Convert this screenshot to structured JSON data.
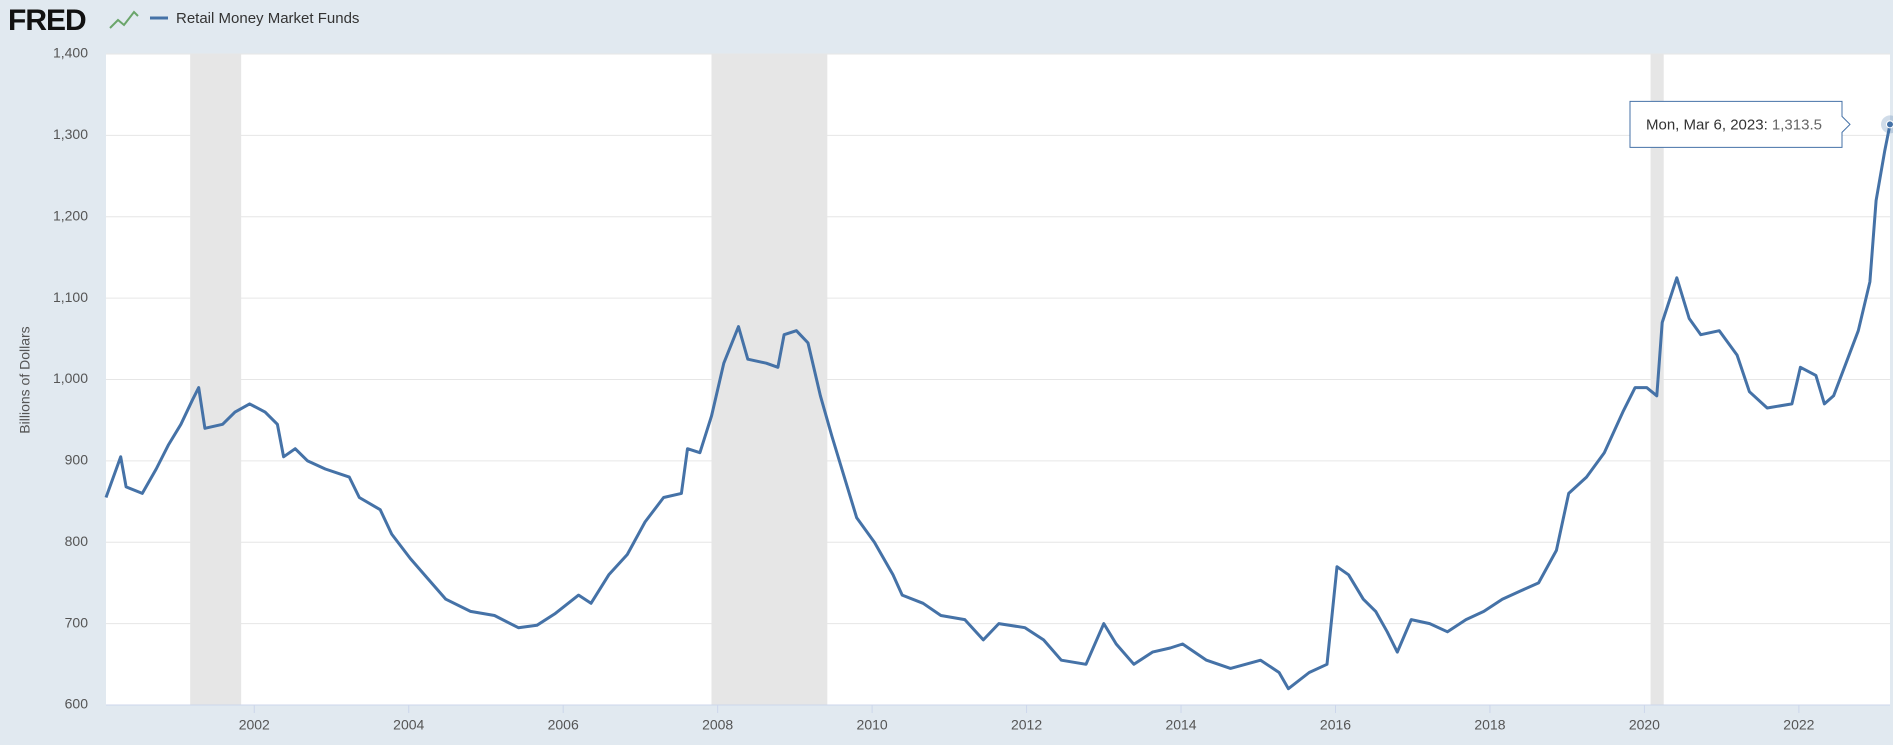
{
  "chart_data": {
    "type": "line",
    "logo": "FRED",
    "ylabel": "Billions of Dollars",
    "x": [
      2000.08,
      2000.27,
      2000.34,
      2000.55,
      2000.73,
      2000.89,
      2001.05,
      2001.2,
      2001.28,
      2001.36,
      2001.59,
      2001.75,
      2001.94,
      2002.14,
      2002.3,
      2002.38,
      2002.53,
      2002.69,
      2002.92,
      2003.23,
      2003.36,
      2003.63,
      2003.78,
      2004.02,
      2004.25,
      2004.48,
      2004.8,
      2005.11,
      2005.42,
      2005.66,
      2005.89,
      2006.2,
      2006.36,
      2006.59,
      2006.83,
      2007.06,
      2007.3,
      2007.53,
      2007.61,
      2007.77,
      2007.92,
      2008.08,
      2008.27,
      2008.39,
      2008.63,
      2008.78,
      2008.86,
      2009.02,
      2009.17,
      2009.33,
      2009.48,
      2009.64,
      2009.8,
      2010.03,
      2010.27,
      2010.39,
      2010.66,
      2010.89,
      2011.2,
      2011.44,
      2011.64,
      2011.98,
      2012.22,
      2012.45,
      2012.77,
      2013.0,
      2013.16,
      2013.39,
      2013.63,
      2013.86,
      2014.02,
      2014.33,
      2014.64,
      2015.03,
      2015.27,
      2015.39,
      2015.66,
      2015.89,
      2016.02,
      2016.17,
      2016.36,
      2016.52,
      2016.67,
      2016.8,
      2016.98,
      2017.22,
      2017.45,
      2017.69,
      2017.92,
      2018.16,
      2018.39,
      2018.63,
      2018.86,
      2019.02,
      2019.25,
      2019.48,
      2019.72,
      2019.88,
      2020.03,
      2020.16,
      2020.23,
      2020.42,
      2020.58,
      2020.73,
      2020.97,
      2021.2,
      2021.36,
      2021.59,
      2021.91,
      2022.02,
      2022.22,
      2022.33,
      2022.45,
      2022.61,
      2022.77,
      2022.92,
      2023.0,
      2023.11,
      2023.18
    ],
    "series": [
      {
        "name": "Retail Money Market Funds",
        "color": "#4572a7",
        "values": [
          855,
          905,
          868,
          860,
          890,
          920,
          945,
          975,
          990,
          940,
          945,
          960,
          970,
          960,
          945,
          905,
          915,
          900,
          890,
          880,
          855,
          840,
          810,
          780,
          755,
          730,
          715,
          710,
          695,
          698,
          712,
          735,
          725,
          760,
          785,
          825,
          855,
          860,
          915,
          910,
          955,
          1020,
          1065,
          1025,
          1020,
          1015,
          1055,
          1060,
          1045,
          980,
          930,
          880,
          830,
          800,
          760,
          735,
          725,
          710,
          705,
          680,
          700,
          695,
          680,
          655,
          650,
          700,
          675,
          650,
          665,
          670,
          675,
          655,
          645,
          655,
          640,
          620,
          640,
          650,
          770,
          760,
          730,
          715,
          690,
          665,
          705,
          700,
          690,
          705,
          715,
          730,
          740,
          750,
          790,
          860,
          880,
          910,
          960,
          990,
          990,
          980,
          1070,
          1125,
          1075,
          1055,
          1060,
          1030,
          985,
          965,
          970,
          1015,
          1005,
          970,
          980,
          1020,
          1060,
          1120,
          1220,
          1280,
          1313.5
        ]
      }
    ],
    "recessions": [
      [
        2001.17,
        2001.83
      ],
      [
        2007.92,
        2009.42
      ],
      [
        2020.08,
        2020.25
      ]
    ],
    "xlim": [
      2000.08,
      2023.18
    ],
    "xticks": [
      2002,
      2004,
      2006,
      2008,
      2010,
      2012,
      2014,
      2016,
      2018,
      2020,
      2022
    ],
    "ylim": [
      600,
      1400
    ],
    "yticks": [
      600,
      700,
      800,
      900,
      {
        "value": 1000,
        "label": "1,000"
      },
      {
        "value": 1100,
        "label": "1,100"
      },
      {
        "value": 1200,
        "label": "1,200"
      },
      {
        "value": 1300,
        "label": "1,300"
      },
      {
        "value": 1400,
        "label": "1,400"
      }
    ],
    "grid": true,
    "tooltip": {
      "label": "Mon, Mar 6, 2023",
      "value": 1313.5,
      "value_label": "1,313.5"
    }
  }
}
